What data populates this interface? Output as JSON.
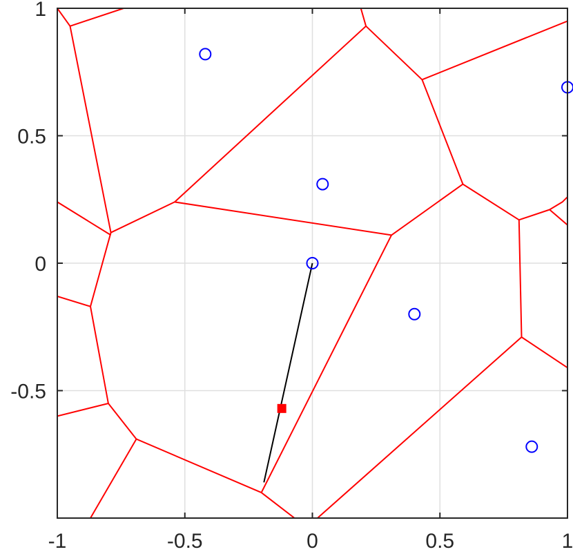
{
  "chart_data": {
    "type": "scatter",
    "title": "",
    "xlabel": "",
    "ylabel": "",
    "xlim": [
      -1,
      1
    ],
    "ylim": [
      -1,
      1
    ],
    "grid": true,
    "x_ticks": [
      -1,
      -0.5,
      0,
      0.5,
      1
    ],
    "x_tick_labels": [
      "-1",
      "-0.5",
      "0",
      "0.5",
      "1"
    ],
    "y_ticks": [
      1,
      0.5,
      0,
      -0.5
    ],
    "y_tick_labels": [
      "1",
      "0.5",
      "0",
      "-0.5"
    ],
    "colors": {
      "edges": "#ff0000",
      "sites": "#0000ff",
      "path": "#000000",
      "query_point": "#ff0000",
      "grid": "#dfdfdf",
      "axes": "#262626"
    },
    "sites": [
      {
        "x": -0.42,
        "y": 0.82
      },
      {
        "x": 0.04,
        "y": 0.31
      },
      {
        "x": 0.0,
        "y": 0.0
      },
      {
        "x": 0.4,
        "y": -0.2
      },
      {
        "x": 0.86,
        "y": -0.72
      },
      {
        "x": 1.0,
        "y": 0.69
      }
    ],
    "query_point": {
      "x": -0.12,
      "y": -0.57
    },
    "path_line": [
      {
        "x": 0.0,
        "y": 0.0
      },
      {
        "x": -0.19,
        "y": -0.86
      }
    ],
    "voronoi_edges": [
      [
        [
          -1,
          1
        ],
        [
          -0.95,
          0.93
        ],
        [
          -0.74,
          1
        ]
      ],
      [
        [
          -0.95,
          0.93
        ],
        [
          -0.79,
          0.12
        ],
        [
          -0.54,
          0.24
        ],
        [
          0.21,
          0.93
        ],
        [
          0.19,
          1
        ]
      ],
      [
        [
          0.21,
          0.93
        ],
        [
          0.43,
          0.72
        ],
        [
          1.0,
          0.95
        ]
      ],
      [
        [
          0.43,
          0.72
        ],
        [
          0.59,
          0.31
        ],
        [
          0.31,
          0.11
        ],
        [
          -0.54,
          0.24
        ]
      ],
      [
        [
          0.59,
          0.31
        ],
        [
          0.81,
          0.17
        ],
        [
          0.93,
          0.21
        ],
        [
          1.0,
          0.15
        ]
      ],
      [
        [
          0.93,
          0.21
        ],
        [
          0.98,
          0.24
        ],
        [
          1.0,
          0.26
        ]
      ],
      [
        [
          -1,
          0.24
        ],
        [
          -0.79,
          0.11
        ]
      ],
      [
        [
          -0.79,
          0.12
        ],
        [
          -0.87,
          -0.17
        ],
        [
          -0.8,
          -0.55
        ],
        [
          -0.69,
          -0.69
        ],
        [
          -0.2,
          -0.9
        ],
        [
          -0.07,
          -1
        ]
      ],
      [
        [
          -1,
          -0.13
        ],
        [
          -0.87,
          -0.17
        ]
      ],
      [
        [
          -1,
          -0.6
        ],
        [
          -0.8,
          -0.55
        ]
      ],
      [
        [
          -0.69,
          -0.69
        ],
        [
          -0.87,
          -1
        ]
      ],
      [
        [
          0.31,
          0.11
        ],
        [
          -0.2,
          -0.9
        ]
      ],
      [
        [
          0.81,
          0.17
        ],
        [
          0.82,
          -0.29
        ],
        [
          1.0,
          -0.41
        ]
      ],
      [
        [
          0.82,
          -0.29
        ],
        [
          0.02,
          -1
        ]
      ]
    ]
  }
}
